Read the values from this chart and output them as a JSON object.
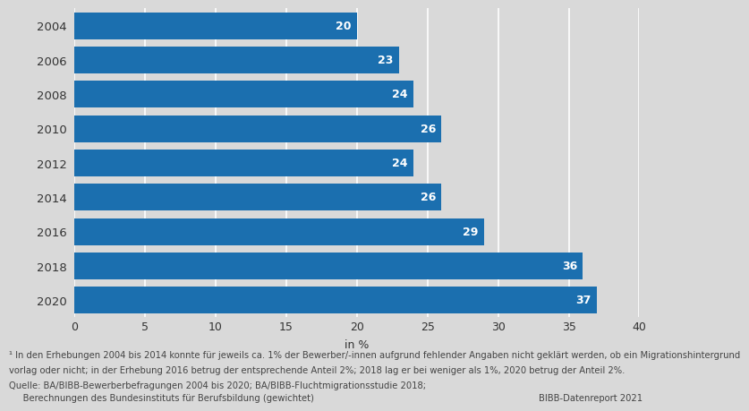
{
  "years": [
    "2004",
    "2006",
    "2008",
    "2010",
    "2012",
    "2014",
    "2016",
    "2018",
    "2020"
  ],
  "values": [
    20,
    23,
    24,
    26,
    24,
    26,
    29,
    36,
    37
  ],
  "bar_color": "#1b6faf",
  "background_color": "#d9d9d9",
  "xlim": [
    0,
    40
  ],
  "xticks": [
    0,
    5,
    10,
    15,
    20,
    25,
    30,
    35,
    40
  ],
  "xlabel": "in %",
  "footnote_line1": "¹ In den Erhebungen 2004 bis 2014 konnte für jeweils ca. 1% der Bewerber/-innen aufgrund fehlender Angaben nicht geklärt werden, ob ein Migrationshintergrund",
  "footnote_line2": "vorlag oder nicht; in der Erhebung 2016 betrug der entsprechende Anteil 2%; 2018 lag er bei weniger als 1%, 2020 betrug der Anteil 2%.",
  "source_line1": "Quelle: BA/BIBB-Bewerberbefragungen 2004 bis 2020; BA/BIBB-Fluchtmigrationsstudie 2018;",
  "source_line2": "     Berechnungen des Bundesinstituts für Berufsbildung (gewichtet)",
  "bibb_text": "BIBB-Datenreport 2021",
  "label_color": "#ffffff",
  "label_fontsize": 9,
  "year_fontsize": 9.5,
  "tick_fontsize": 9,
  "footnote_fontsize": 7.2,
  "source_fontsize": 7.2,
  "bibb_fontsize": 7.2,
  "bar_height": 0.78,
  "grid_color": "#ffffff",
  "grid_linewidth": 1.2
}
